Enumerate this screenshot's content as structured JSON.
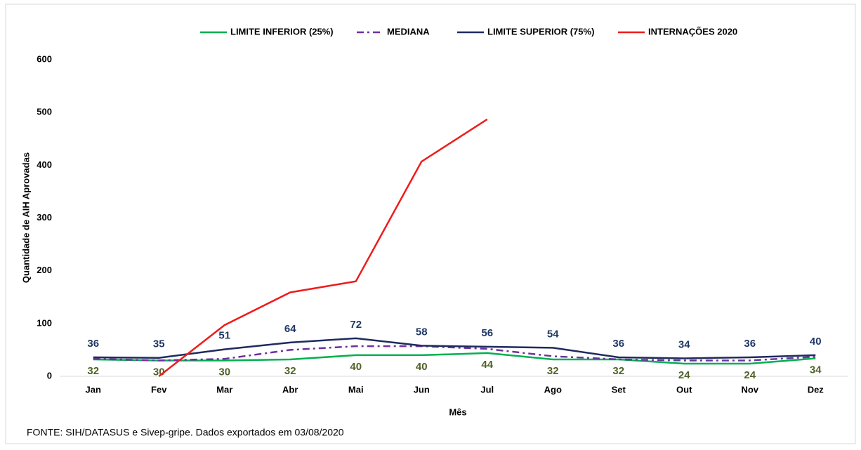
{
  "chart_data": {
    "type": "line",
    "categories": [
      "Jan",
      "Fev",
      "Mar",
      "Abr",
      "Mai",
      "Jun",
      "Jul",
      "Ago",
      "Set",
      "Out",
      "Nov",
      "Dez"
    ],
    "series": [
      {
        "name": "LIMITE INFERIOR (25%)",
        "color": "#00b050",
        "values": [
          32,
          30,
          30,
          32,
          40,
          40,
          44,
          32,
          32,
          24,
          24,
          34
        ]
      },
      {
        "name": "MEDIANA",
        "color": "#7030a0",
        "dash": "dashdot",
        "values": [
          33,
          30,
          33,
          50,
          57,
          57,
          52,
          38,
          32,
          30,
          30,
          37
        ]
      },
      {
        "name": "LIMITE SUPERIOR (75%)",
        "color": "#1f2a5e",
        "values": [
          36,
          35,
          51,
          64,
          72,
          58,
          56,
          54,
          36,
          34,
          36,
          40
        ]
      },
      {
        "name": "INTERNAÇÕES 2020",
        "color": "#ee1c1c",
        "values": [
          null,
          0,
          97,
          159,
          180,
          407,
          487,
          null,
          null,
          null,
          null,
          null
        ]
      }
    ],
    "ylim": [
      0,
      600
    ],
    "yticks": [
      0,
      100,
      200,
      300,
      400,
      500,
      600
    ],
    "grid": false,
    "x_label": "Mês",
    "y_label": "Quantidade de AIH Aprovadas",
    "legend": "top",
    "source": "FONTE: SIH/DATASUS e Sivep-gripe.  Dados exportados em 03/08/2020"
  }
}
